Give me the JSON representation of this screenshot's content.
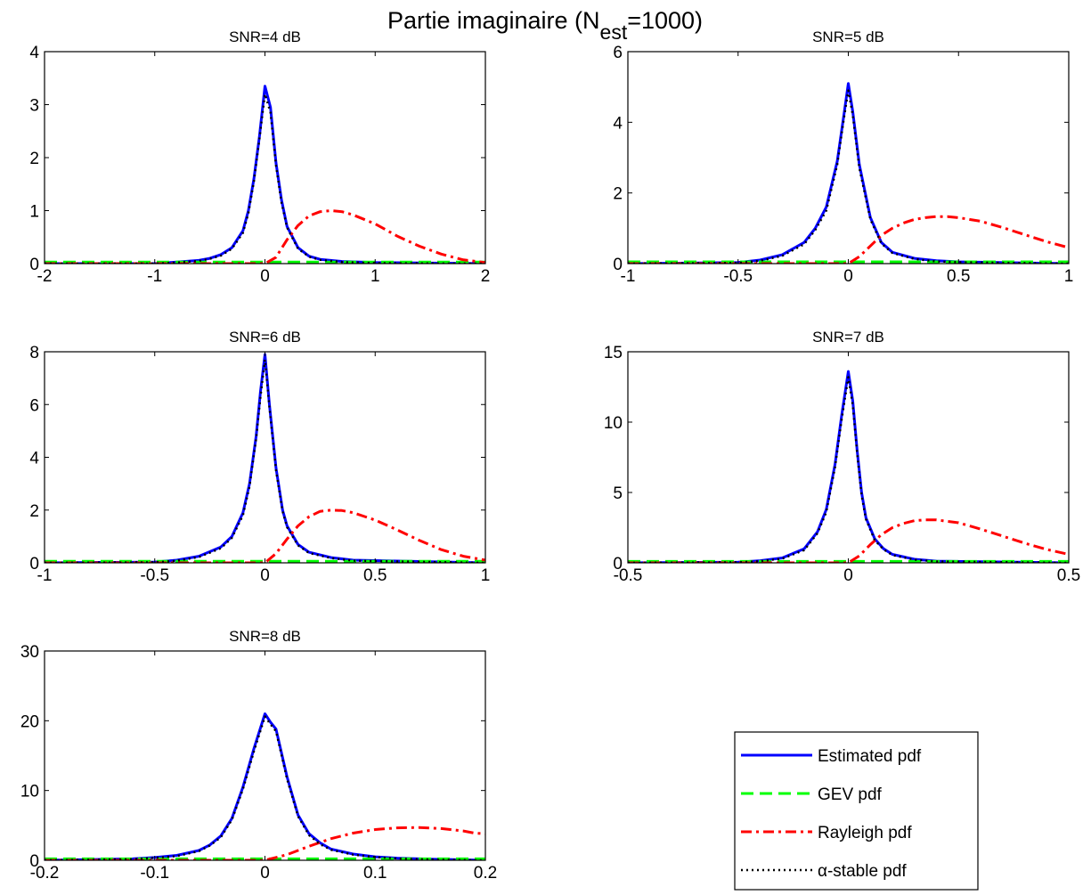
{
  "figure": {
    "title_main": "Partie imaginaire (N",
    "title_sub": "est",
    "title_tail": "=1000)"
  },
  "colors": {
    "estimated": "#0000ff",
    "gev": "#00ff00",
    "rayleigh": "#ff0000",
    "stable": "#000000"
  },
  "legend": {
    "entries": [
      {
        "key": "estimated",
        "label": "Estimated pdf",
        "style": "solid"
      },
      {
        "key": "gev",
        "label": "GEV pdf",
        "style": "dashed"
      },
      {
        "key": "rayleigh",
        "label": "Rayleigh pdf",
        "style": "dashdot"
      },
      {
        "key": "stable",
        "label": "α-stable pdf",
        "style": "dotted"
      }
    ],
    "placement": "lower-right, empty sixth panel"
  },
  "chart_data": [
    {
      "type": "line",
      "title": "SNR=4 dB",
      "xlim": [
        -2,
        2
      ],
      "ylim": [
        0,
        4
      ],
      "xticks": [
        -2,
        -1,
        0,
        1,
        2
      ],
      "yticks": [
        0,
        1,
        2,
        3,
        4
      ],
      "xtick_labels": [
        "-2",
        "-1",
        "0",
        "1",
        "2"
      ],
      "ytick_labels": [
        "0",
        "1",
        "2",
        "3",
        "4"
      ],
      "series": [
        {
          "key": "estimated",
          "x": [
            -2,
            -1,
            -0.8,
            -0.6,
            -0.5,
            -0.4,
            -0.3,
            -0.2,
            -0.15,
            -0.1,
            -0.05,
            0,
            0.05,
            0.1,
            0.15,
            0.2,
            0.3,
            0.4,
            0.5,
            0.7,
            1,
            2
          ],
          "y": [
            0,
            0,
            0.03,
            0.06,
            0.1,
            0.17,
            0.3,
            0.62,
            1.0,
            1.6,
            2.4,
            3.35,
            2.95,
            1.9,
            1.2,
            0.7,
            0.3,
            0.14,
            0.08,
            0.04,
            0.02,
            0
          ]
        },
        {
          "key": "stable",
          "x": [
            -2,
            -1,
            -0.8,
            -0.6,
            -0.5,
            -0.4,
            -0.3,
            -0.2,
            -0.15,
            -0.1,
            -0.05,
            0,
            0.05,
            0.1,
            0.15,
            0.2,
            0.3,
            0.4,
            0.5,
            0.7,
            1,
            2
          ],
          "y": [
            0,
            0,
            0.02,
            0.05,
            0.09,
            0.15,
            0.28,
            0.58,
            0.95,
            1.55,
            2.35,
            3.2,
            2.85,
            1.85,
            1.15,
            0.68,
            0.28,
            0.13,
            0.07,
            0.03,
            0.01,
            0
          ]
        },
        {
          "key": "gev",
          "x": [
            -2,
            2
          ],
          "y": [
            0.03,
            0.03
          ]
        },
        {
          "key": "rayleigh",
          "x": [
            -2,
            0,
            0.1,
            0.2,
            0.3,
            0.4,
            0.5,
            0.6,
            0.7,
            0.8,
            1.0,
            1.2,
            1.4,
            1.6,
            1.8,
            2.0
          ],
          "y": [
            0,
            0,
            0.12,
            0.45,
            0.72,
            0.9,
            0.98,
            1.0,
            0.98,
            0.92,
            0.75,
            0.52,
            0.33,
            0.18,
            0.07,
            0.02
          ]
        }
      ]
    },
    {
      "type": "line",
      "title": "SNR=5 dB",
      "xlim": [
        -1,
        1
      ],
      "ylim": [
        0,
        6
      ],
      "xticks": [
        -1,
        -0.5,
        0,
        0.5,
        1
      ],
      "yticks": [
        0,
        2,
        4,
        6
      ],
      "xtick_labels": [
        "-1",
        "-0.5",
        "0",
        "0.5",
        "1"
      ],
      "ytick_labels": [
        "0",
        "2",
        "4",
        "6"
      ],
      "series": [
        {
          "key": "estimated",
          "x": [
            -1,
            -0.5,
            -0.4,
            -0.3,
            -0.2,
            -0.15,
            -0.1,
            -0.05,
            -0.02,
            0,
            0.02,
            0.05,
            0.1,
            0.15,
            0.2,
            0.3,
            0.4,
            0.5,
            1
          ],
          "y": [
            0,
            0.03,
            0.1,
            0.25,
            0.6,
            1.0,
            1.6,
            2.9,
            4.2,
            5.1,
            4.3,
            2.8,
            1.3,
            0.6,
            0.32,
            0.15,
            0.08,
            0.05,
            0
          ]
        },
        {
          "key": "stable",
          "x": [
            -1,
            -0.5,
            -0.4,
            -0.3,
            -0.2,
            -0.15,
            -0.1,
            -0.05,
            -0.02,
            0,
            0.02,
            0.05,
            0.1,
            0.15,
            0.2,
            0.3,
            0.4,
            0.5,
            1
          ],
          "y": [
            0,
            0.02,
            0.08,
            0.22,
            0.55,
            0.95,
            1.5,
            2.8,
            4.1,
            4.9,
            4.2,
            2.7,
            1.25,
            0.57,
            0.3,
            0.13,
            0.06,
            0.04,
            0
          ]
        },
        {
          "key": "gev",
          "x": [
            -1,
            1
          ],
          "y": [
            0.05,
            0.05
          ]
        },
        {
          "key": "rayleigh",
          "x": [
            -1,
            0,
            0.05,
            0.1,
            0.15,
            0.2,
            0.25,
            0.3,
            0.35,
            0.4,
            0.45,
            0.5,
            0.6,
            0.7,
            0.8,
            0.9,
            1.0
          ],
          "y": [
            0,
            0,
            0.2,
            0.5,
            0.8,
            1.0,
            1.15,
            1.25,
            1.3,
            1.33,
            1.33,
            1.3,
            1.2,
            1.02,
            0.82,
            0.62,
            0.45
          ]
        }
      ]
    },
    {
      "type": "line",
      "title": "SNR=6 dB",
      "xlim": [
        -1,
        1
      ],
      "ylim": [
        0,
        8
      ],
      "xticks": [
        -1,
        -0.5,
        0,
        0.5,
        1
      ],
      "yticks": [
        0,
        2,
        4,
        6,
        8
      ],
      "xtick_labels": [
        "-1",
        "-0.5",
        "0",
        "0.5",
        "1"
      ],
      "ytick_labels": [
        "0",
        "2",
        "4",
        "6",
        "8"
      ],
      "series": [
        {
          "key": "estimated",
          "x": [
            -1,
            -0.5,
            -0.4,
            -0.3,
            -0.2,
            -0.15,
            -0.1,
            -0.07,
            -0.04,
            -0.02,
            0,
            0.02,
            0.05,
            0.08,
            0.1,
            0.15,
            0.2,
            0.3,
            0.4,
            1
          ],
          "y": [
            0,
            0.03,
            0.1,
            0.25,
            0.6,
            1.0,
            1.9,
            3.0,
            4.8,
            6.5,
            7.9,
            6.0,
            3.6,
            2.0,
            1.4,
            0.7,
            0.4,
            0.2,
            0.1,
            0
          ]
        },
        {
          "key": "stable",
          "x": [
            -1,
            -0.5,
            -0.4,
            -0.3,
            -0.2,
            -0.15,
            -0.1,
            -0.07,
            -0.04,
            -0.02,
            0,
            0.02,
            0.05,
            0.08,
            0.1,
            0.15,
            0.2,
            0.3,
            0.4,
            1
          ],
          "y": [
            0,
            0.02,
            0.08,
            0.22,
            0.55,
            0.95,
            1.8,
            2.9,
            4.7,
            6.3,
            7.7,
            5.9,
            3.5,
            1.95,
            1.35,
            0.66,
            0.37,
            0.18,
            0.08,
            0
          ]
        },
        {
          "key": "gev",
          "x": [
            -1,
            1
          ],
          "y": [
            0.06,
            0.06
          ]
        },
        {
          "key": "rayleigh",
          "x": [
            -1,
            0,
            0.05,
            0.1,
            0.15,
            0.2,
            0.25,
            0.3,
            0.35,
            0.4,
            0.5,
            0.6,
            0.7,
            0.8,
            0.9,
            1.0
          ],
          "y": [
            0,
            0,
            0.35,
            0.9,
            1.4,
            1.75,
            1.95,
            2.0,
            1.98,
            1.9,
            1.62,
            1.25,
            0.85,
            0.5,
            0.25,
            0.1
          ]
        }
      ]
    },
    {
      "type": "line",
      "title": "SNR=7 dB",
      "xlim": [
        -0.5,
        0.5
      ],
      "ylim": [
        0,
        15
      ],
      "xticks": [
        -0.5,
        0,
        0.5
      ],
      "yticks": [
        0,
        5,
        10,
        15
      ],
      "xtick_labels": [
        "-0.5",
        "0",
        "0.5"
      ],
      "ytick_labels": [
        "0",
        "5",
        "10",
        "15"
      ],
      "series": [
        {
          "key": "estimated",
          "x": [
            -0.5,
            -0.25,
            -0.2,
            -0.15,
            -0.1,
            -0.07,
            -0.05,
            -0.03,
            -0.015,
            0,
            0.01,
            0.02,
            0.03,
            0.04,
            0.06,
            0.08,
            0.1,
            0.15,
            0.2,
            0.5
          ],
          "y": [
            0,
            0.05,
            0.15,
            0.35,
            1.0,
            2.2,
            3.8,
            7.0,
            10.5,
            13.6,
            11.5,
            8.0,
            5.0,
            3.2,
            1.7,
            1.0,
            0.6,
            0.25,
            0.12,
            0
          ]
        },
        {
          "key": "stable",
          "x": [
            -0.5,
            -0.25,
            -0.2,
            -0.15,
            -0.1,
            -0.07,
            -0.05,
            -0.03,
            -0.015,
            0,
            0.01,
            0.02,
            0.03,
            0.04,
            0.06,
            0.08,
            0.1,
            0.15,
            0.2,
            0.5
          ],
          "y": [
            0,
            0.04,
            0.12,
            0.3,
            0.9,
            2.1,
            3.6,
            6.8,
            10.2,
            13.2,
            11.2,
            7.8,
            4.8,
            3.1,
            1.6,
            0.95,
            0.55,
            0.22,
            0.1,
            0
          ]
        },
        {
          "key": "gev",
          "x": [
            -0.5,
            0.5
          ],
          "y": [
            0.1,
            0.1
          ]
        },
        {
          "key": "rayleigh",
          "x": [
            -0.5,
            0,
            0.025,
            0.05,
            0.075,
            0.1,
            0.125,
            0.15,
            0.175,
            0.2,
            0.25,
            0.3,
            0.35,
            0.4,
            0.45,
            0.5
          ],
          "y": [
            0,
            0,
            0.5,
            1.3,
            2.0,
            2.5,
            2.8,
            3.0,
            3.05,
            3.05,
            2.85,
            2.4,
            1.9,
            1.4,
            0.95,
            0.6
          ]
        }
      ]
    },
    {
      "type": "line",
      "title": "SNR=8 dB",
      "xlim": [
        -0.2,
        0.2
      ],
      "ylim": [
        0,
        30
      ],
      "xticks": [
        -0.2,
        -0.1,
        0,
        0.1,
        0.2
      ],
      "yticks": [
        0,
        10,
        20,
        30
      ],
      "xtick_labels": [
        "-0.2",
        "-0.1",
        "0",
        "0.1",
        "0.2"
      ],
      "ytick_labels": [
        "0",
        "10",
        "20",
        "30"
      ],
      "series": [
        {
          "key": "estimated",
          "x": [
            -0.2,
            -0.12,
            -0.1,
            -0.08,
            -0.06,
            -0.05,
            -0.04,
            -0.03,
            -0.02,
            -0.01,
            0,
            0.005,
            0.01,
            0.02,
            0.03,
            0.04,
            0.05,
            0.06,
            0.08,
            0.1,
            0.12,
            0.15,
            0.2
          ],
          "y": [
            0,
            0.2,
            0.4,
            0.7,
            1.4,
            2.2,
            3.5,
            6.0,
            10.5,
            16.0,
            21.0,
            19.8,
            18.8,
            12.0,
            6.5,
            3.8,
            2.5,
            1.6,
            0.9,
            0.5,
            0.3,
            0.15,
            0
          ]
        },
        {
          "key": "stable",
          "x": [
            -0.2,
            -0.12,
            -0.1,
            -0.08,
            -0.06,
            -0.05,
            -0.04,
            -0.03,
            -0.02,
            -0.01,
            0,
            0.005,
            0.01,
            0.02,
            0.03,
            0.04,
            0.05,
            0.06,
            0.08,
            0.1,
            0.12,
            0.15,
            0.2
          ],
          "y": [
            0,
            0.15,
            0.35,
            0.6,
            1.3,
            2.1,
            3.3,
            5.8,
            10.2,
            15.6,
            20.6,
            19.5,
            18.5,
            11.7,
            6.3,
            3.6,
            2.3,
            1.5,
            0.8,
            0.45,
            0.25,
            0.12,
            0
          ]
        },
        {
          "key": "gev",
          "x": [
            -0.2,
            0.2
          ],
          "y": [
            0.2,
            0.2
          ]
        },
        {
          "key": "rayleigh",
          "x": [
            -0.2,
            0,
            0.02,
            0.04,
            0.06,
            0.08,
            0.1,
            0.12,
            0.14,
            0.16,
            0.18,
            0.19,
            0.2
          ],
          "y": [
            0,
            0,
            0.8,
            2.0,
            3.1,
            3.9,
            4.4,
            4.65,
            4.7,
            4.55,
            4.2,
            3.9,
            3.8
          ]
        }
      ]
    }
  ]
}
